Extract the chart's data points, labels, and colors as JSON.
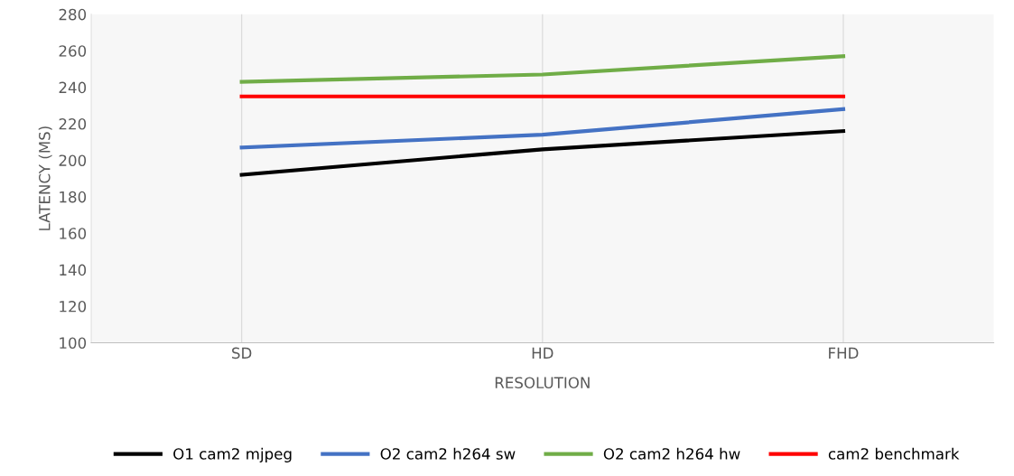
{
  "chart_data": {
    "type": "line",
    "xlabel": "RESOLUTION",
    "ylabel": "LATENCY (MS)",
    "categories": [
      "SD",
      "HD",
      "FHD"
    ],
    "series": [
      {
        "name": "O1 cam2 mjpeg",
        "color": "#000000",
        "values": [
          192,
          206,
          216
        ]
      },
      {
        "name": "O2 cam2 h264 sw",
        "color": "#4472c4",
        "values": [
          207,
          214,
          228
        ]
      },
      {
        "name": "O2 cam2 h264 hw",
        "color": "#70ad47",
        "values": [
          243,
          247,
          257
        ]
      },
      {
        "name": "cam2 benchmark",
        "color": "#ff0000",
        "values": [
          235,
          235,
          235
        ]
      }
    ],
    "ylim": [
      100,
      280
    ],
    "yticks": [
      100,
      120,
      140,
      160,
      180,
      200,
      220,
      240,
      260,
      280
    ],
    "grid": "x",
    "legend": "bottom",
    "marker": "none",
    "line_style": "solid"
  }
}
